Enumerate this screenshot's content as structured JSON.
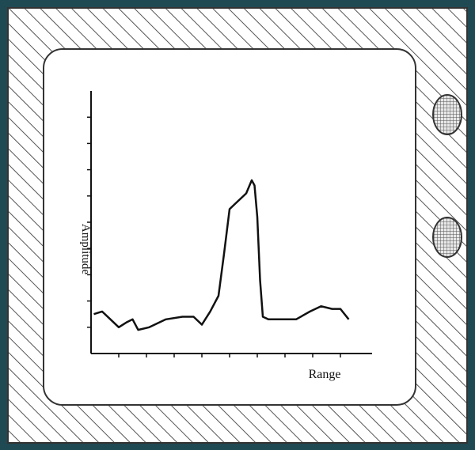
{
  "chart_data": {
    "type": "line",
    "xlabel": "Range",
    "ylabel": "Amplitude",
    "xlim": [
      0,
      10
    ],
    "ylim": [
      0,
      10
    ],
    "xticks": [
      1,
      2,
      3,
      4,
      5,
      6,
      7,
      8,
      9
    ],
    "yticks": [
      1,
      2,
      3,
      4,
      5,
      6,
      7,
      8,
      9
    ],
    "color": "#111111",
    "x": [
      0.1,
      0.4,
      0.7,
      1.0,
      1.3,
      1.5,
      1.7,
      2.1,
      2.7,
      3.3,
      3.7,
      4.0,
      4.3,
      4.6,
      4.8,
      5.0,
      5.3,
      5.6,
      5.8,
      5.9,
      6.0,
      6.1,
      6.2,
      6.4,
      7.4,
      7.9,
      8.3,
      8.7,
      9.0,
      9.3
    ],
    "values": [
      1.5,
      1.6,
      1.3,
      1.0,
      1.2,
      1.3,
      0.9,
      1.0,
      1.3,
      1.4,
      1.4,
      1.1,
      1.6,
      2.2,
      3.8,
      5.5,
      5.8,
      6.1,
      6.6,
      6.4,
      5.2,
      2.8,
      1.4,
      1.3,
      1.3,
      1.6,
      1.8,
      1.7,
      1.7,
      1.3
    ]
  }
}
